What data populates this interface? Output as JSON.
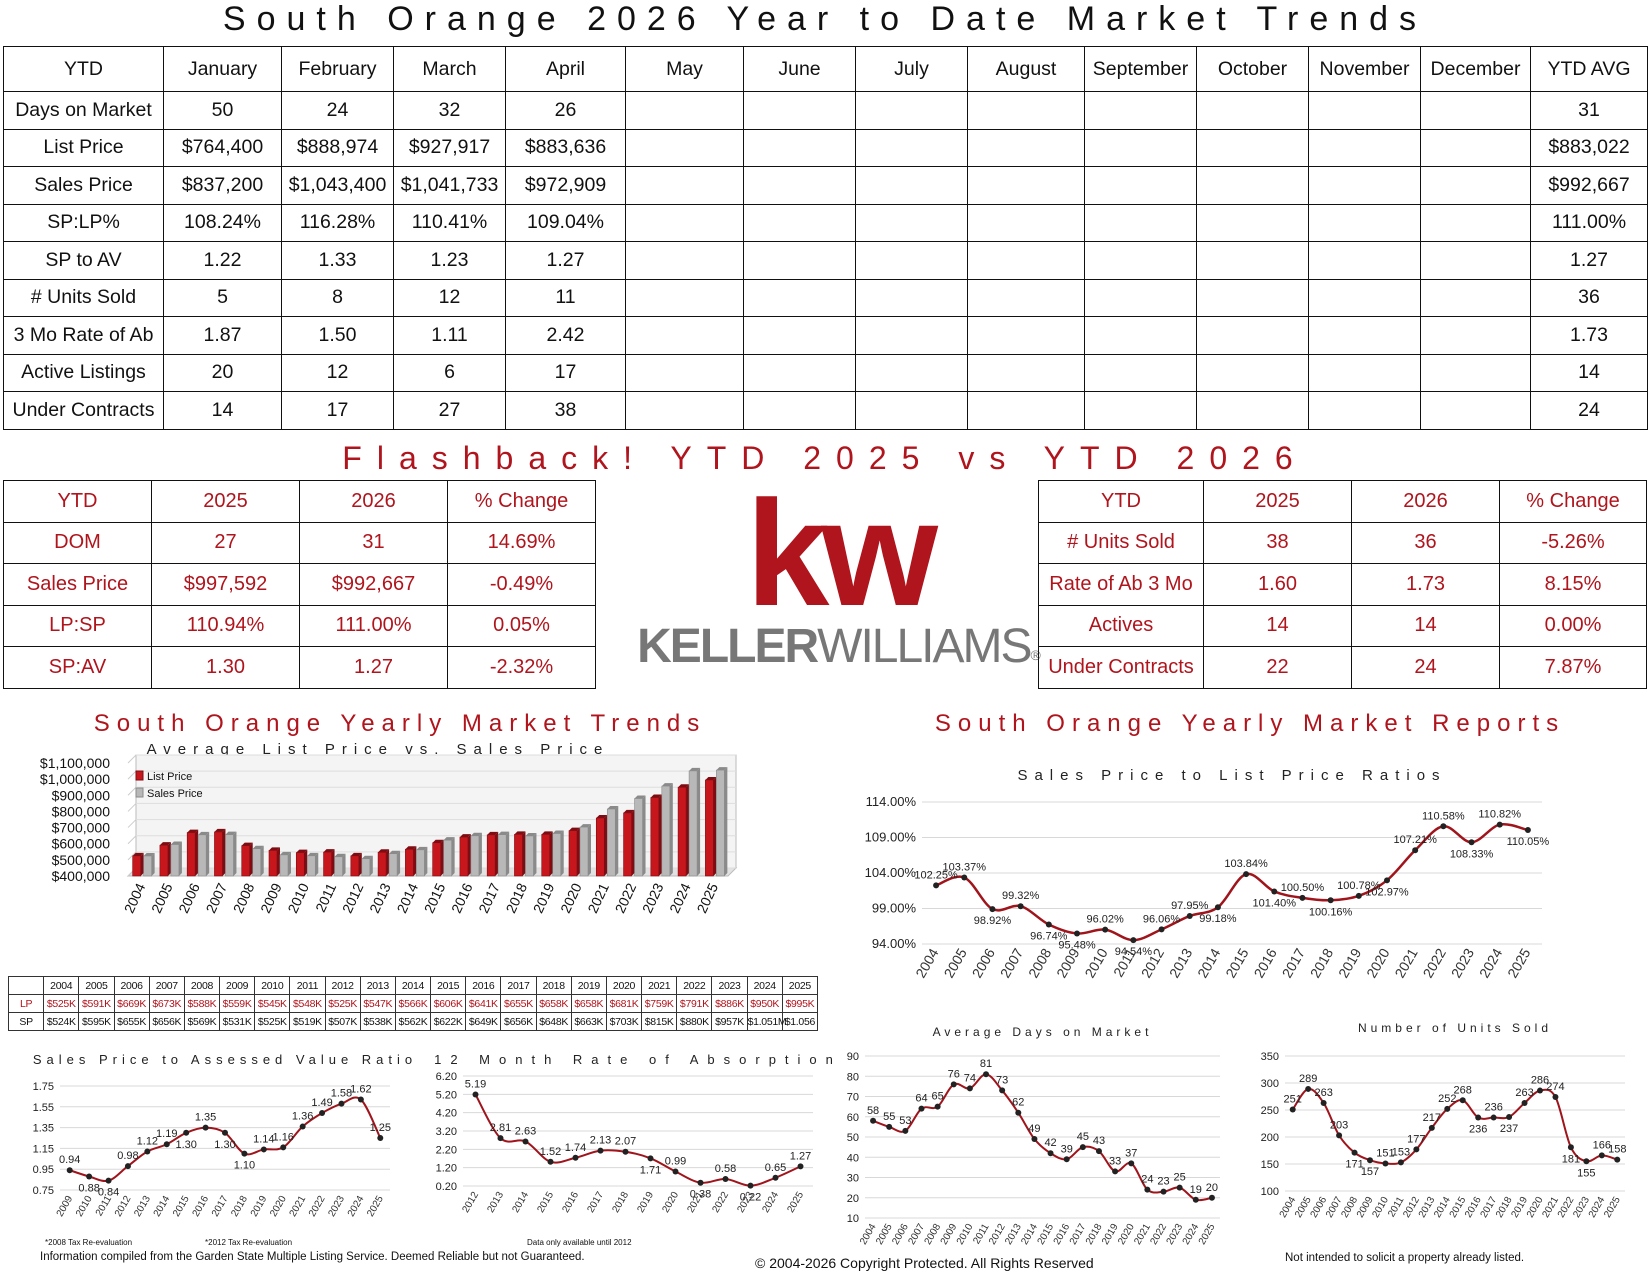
{
  "title": "South Orange 2026 Year to Date Market Trends",
  "main_table": {
    "columns": [
      "YTD",
      "January",
      "February",
      "March",
      "April",
      "May",
      "June",
      "July",
      "August",
      "September",
      "October",
      "November",
      "December",
      "YTD AVG"
    ],
    "rows": [
      {
        "label": "Days on Market",
        "values": [
          "50",
          "24",
          "32",
          "26",
          "",
          "",
          "",
          "",
          "",
          "",
          "",
          ""
        ],
        "avg": "31"
      },
      {
        "label": "List Price",
        "values": [
          "$764,400",
          "$888,974",
          "$927,917",
          "$883,636",
          "",
          "",
          "",
          "",
          "",
          "",
          "",
          ""
        ],
        "avg": "$883,022"
      },
      {
        "label": "Sales Price",
        "values": [
          "$837,200",
          "$1,043,400",
          "$1,041,733",
          "$972,909",
          "",
          "",
          "",
          "",
          "",
          "",
          "",
          ""
        ],
        "avg": "$992,667"
      },
      {
        "label": "SP:LP%",
        "values": [
          "108.24%",
          "116.28%",
          "110.41%",
          "109.04%",
          "",
          "",
          "",
          "",
          "",
          "",
          "",
          ""
        ],
        "avg": "111.00%"
      },
      {
        "label": "SP to AV",
        "values": [
          "1.22",
          "1.33",
          "1.23",
          "1.27",
          "",
          "",
          "",
          "",
          "",
          "",
          "",
          ""
        ],
        "avg": "1.27"
      },
      {
        "label": "# Units Sold",
        "values": [
          "5",
          "8",
          "12",
          "11",
          "",
          "",
          "",
          "",
          "",
          "",
          "",
          ""
        ],
        "avg": "36"
      },
      {
        "label": "3 Mo Rate of Ab",
        "values": [
          "1.87",
          "1.50",
          "1.11",
          "2.42",
          "",
          "",
          "",
          "",
          "",
          "",
          "",
          ""
        ],
        "avg": "1.73"
      },
      {
        "label": "Active Listings",
        "values": [
          "20",
          "12",
          "6",
          "17",
          "",
          "",
          "",
          "",
          "",
          "",
          "",
          ""
        ],
        "avg": "14"
      },
      {
        "label": "Under Contracts",
        "values": [
          "14",
          "17",
          "27",
          "38",
          "",
          "",
          "",
          "",
          "",
          "",
          "",
          ""
        ],
        "avg": "24"
      }
    ]
  },
  "flashback": {
    "title": "Flashback!  YTD 2025 vs YTD 2026",
    "columns": [
      "YTD",
      "2025",
      "2026",
      "% Change"
    ],
    "left_rows": [
      [
        "DOM",
        "27",
        "31",
        "14.69%"
      ],
      [
        "Sales Price",
        "$997,592",
        "$992,667",
        "-0.49%"
      ],
      [
        "LP:SP",
        "110.94%",
        "111.00%",
        "0.05%"
      ],
      [
        "SP:AV",
        "1.30",
        "1.27",
        "-2.32%"
      ]
    ],
    "right_rows": [
      [
        "# Units Sold",
        "38",
        "36",
        "-5.26%"
      ],
      [
        "Rate of Ab 3 Mo",
        "1.60",
        "1.73",
        "8.15%"
      ],
      [
        "Actives",
        "14",
        "14",
        "0.00%"
      ],
      [
        "Under Contracts",
        "22",
        "24",
        "7.87%"
      ]
    ]
  },
  "logo": {
    "kw": "kw",
    "brand_left": "KELLER",
    "brand_right": "WILLIAMS",
    "mark": "®"
  },
  "colors": {
    "accent": "#b0141c",
    "list_bar": "#c8161d",
    "sales_bar": "#b8b8b8",
    "line": "#a0141c"
  },
  "section_titles": {
    "trends": "South Orange Yearly Market Trends",
    "reports": "South Orange Yearly Market Reports"
  },
  "mini_table": {
    "years": [
      "2004",
      "2005",
      "2006",
      "2007",
      "2008",
      "2009",
      "2010",
      "2011",
      "2012",
      "2013",
      "2014",
      "2015",
      "2016",
      "2017",
      "2018",
      "2019",
      "2020",
      "2021",
      "2022",
      "2023",
      "2024",
      "2025"
    ],
    "lp_label": "LP",
    "sp_label": "SP",
    "lp": [
      "$525K",
      "$591K",
      "$669K",
      "$673K",
      "$588K",
      "$559K",
      "$545K",
      "$548K",
      "$525K",
      "$547K",
      "$566K",
      "$606K",
      "$641K",
      "$655K",
      "$658K",
      "$658K",
      "$681K",
      "$759K",
      "$791K",
      "$886K",
      "$950K",
      "$995K"
    ],
    "sp": [
      "$524K",
      "$595K",
      "$655K",
      "$656K",
      "$569K",
      "$531K",
      "$525K",
      "$519K",
      "$507K",
      "$538K",
      "$562K",
      "$622K",
      "$649K",
      "$656K",
      "$648K",
      "$663K",
      "$703K",
      "$815K",
      "$880K",
      "$957K",
      "$1.051M",
      "$1.056"
    ]
  },
  "footer": {
    "left": "Information compiled from the Garden State Multiple Listing Service.  Deemed Reliable but not Guaranteed.",
    "center": "© 2004-2026 Copyright Protected.  All Rights Reserved",
    "right": "Not intended to solicit a property already listed.",
    "note_2008": "*2008 Tax Re-evaluation",
    "note_2012": "*2012 Tax Re-evaluation",
    "note_data": "Data only available until 2012"
  },
  "chart_data": [
    {
      "id": "list-vs-sales",
      "type": "bar",
      "title": "Average List Price vs. Sales Price",
      "categories": [
        "2004",
        "2005",
        "2006",
        "2007",
        "2008",
        "2009",
        "2010",
        "2011",
        "2012",
        "2013",
        "2014",
        "2015",
        "2016",
        "2017",
        "2018",
        "2019",
        "2020",
        "2021",
        "2022",
        "2023",
        "2024",
        "2025"
      ],
      "series": [
        {
          "name": "List Price",
          "values": [
            525000,
            591000,
            669000,
            673000,
            588000,
            559000,
            545000,
            548000,
            525000,
            547000,
            566000,
            606000,
            641000,
            655000,
            658000,
            658000,
            681000,
            759000,
            791000,
            886000,
            950000,
            995000
          ]
        },
        {
          "name": "Sales Price",
          "values": [
            524000,
            595000,
            655000,
            656000,
            569000,
            531000,
            525000,
            519000,
            507000,
            538000,
            562000,
            622000,
            649000,
            656000,
            648000,
            663000,
            703000,
            815000,
            880000,
            957000,
            1051000,
            1056000
          ]
        }
      ],
      "ylim": [
        400000,
        1100000
      ],
      "yticks": [
        "$400,000",
        "$500,000",
        "$600,000",
        "$700,000",
        "$800,000",
        "$900,000",
        "$1,000,000",
        "$1,100,000"
      ],
      "legend": "top-left"
    },
    {
      "id": "sp-lp-ratio",
      "type": "line",
      "title": "Sales Price to List Price Ratios",
      "categories": [
        "2004",
        "2005",
        "2006",
        "2007",
        "2008",
        "2009",
        "2010",
        "2011",
        "2012",
        "2013",
        "2014",
        "2015",
        "2016",
        "2017",
        "2018",
        "2019",
        "2020",
        "2021",
        "2022",
        "2023",
        "2024",
        "2025"
      ],
      "values": [
        102.25,
        103.37,
        98.92,
        99.32,
        96.74,
        95.48,
        96.02,
        94.54,
        96.06,
        97.95,
        99.18,
        103.84,
        101.4,
        100.5,
        100.16,
        100.78,
        102.97,
        107.21,
        110.58,
        108.33,
        110.82,
        110.05
      ],
      "labels": [
        "102.25%",
        "103.37%",
        "98.92%",
        "99.32%",
        "96.74%",
        "95.48%",
        "96.02%",
        "94.54%",
        "96.06%",
        "97.95%",
        "99.18%",
        "103.84%",
        "101.40%",
        "100.50%",
        "100.16%",
        "100.78%",
        "102.97%",
        "107.21%",
        "110.58%",
        "108.33%",
        "110.82%",
        "110.05%"
      ],
      "ylim": [
        94,
        114
      ],
      "yticks": [
        "94.00%",
        "99.00%",
        "104.00%",
        "109.00%",
        "114.00%"
      ]
    },
    {
      "id": "sp-av-ratio",
      "type": "line",
      "title": "Sales Price to Assessed Value Ratio",
      "categories": [
        "2009",
        "2010",
        "2011",
        "2012",
        "2013",
        "2014",
        "2015",
        "2016",
        "2017",
        "2018",
        "2019",
        "2020",
        "2021",
        "2022",
        "2023",
        "2024",
        "2025"
      ],
      "values": [
        0.94,
        0.88,
        0.84,
        0.98,
        1.12,
        1.19,
        1.3,
        1.35,
        1.3,
        1.1,
        1.14,
        1.16,
        1.36,
        1.49,
        1.58,
        1.62,
        1.25
      ],
      "labels": [
        "0.94",
        "0.88",
        "0.84",
        "0.98",
        "1.12",
        "1.19",
        "1.30",
        "1.35",
        "1.30",
        "1.10",
        "1.14",
        "1.16",
        "1.36",
        "1.49",
        "1.58",
        "1.62",
        "1.25"
      ],
      "ylim": [
        0.75,
        1.75
      ],
      "yticks": [
        "0.75",
        "0.95",
        "1.15",
        "1.35",
        "1.55",
        "1.75"
      ]
    },
    {
      "id": "absorption",
      "type": "line",
      "title": "12 Month Rate of Absorption",
      "categories": [
        "2012",
        "2013",
        "2014",
        "2015",
        "2016",
        "2017",
        "2018",
        "2019",
        "2020",
        "2021",
        "2022",
        "2023",
        "2024",
        "2025"
      ],
      "values": [
        5.19,
        2.81,
        2.63,
        1.52,
        1.74,
        2.13,
        2.07,
        1.71,
        0.99,
        0.38,
        0.58,
        0.22,
        0.65,
        1.27
      ],
      "labels": [
        "5.19",
        "2.81",
        "2.63",
        "1.52",
        "1.74",
        "2.13",
        "2.07",
        "1.71",
        "0.99",
        "0.38",
        "0.58",
        "0.22",
        "0.65",
        "1.27"
      ],
      "ylim": [
        0.2,
        6.2
      ],
      "yticks": [
        "0.20",
        "1.20",
        "2.20",
        "3.20",
        "4.20",
        "5.20",
        "6.20"
      ]
    },
    {
      "id": "days-on-market",
      "type": "line",
      "title": "Average Days on Market",
      "categories": [
        "2004",
        "2005",
        "2006",
        "2007",
        "2008",
        "2009",
        "2010",
        "2011",
        "2012",
        "2013",
        "2014",
        "2015",
        "2016",
        "2017",
        "2018",
        "2019",
        "2020",
        "2021",
        "2022",
        "2023",
        "2024",
        "2025"
      ],
      "values": [
        58,
        55,
        53,
        64,
        65,
        76,
        74,
        81,
        73,
        62,
        49,
        42,
        39,
        45,
        43,
        33,
        37,
        24,
        23,
        25,
        19,
        20
      ],
      "labels": [
        "58",
        "55",
        "53",
        "64",
        "65",
        "76",
        "74",
        "81",
        "73",
        "62",
        "49",
        "42",
        "39",
        "45",
        "43",
        "33",
        "37",
        "24",
        "23",
        "25",
        "19",
        "20"
      ],
      "ylim": [
        10,
        90
      ],
      "yticks": [
        "10",
        "20",
        "30",
        "40",
        "50",
        "60",
        "70",
        "80",
        "90"
      ]
    },
    {
      "id": "units-sold",
      "type": "line",
      "title": "Number of Units Sold",
      "categories": [
        "2004",
        "2005",
        "2006",
        "2007",
        "2008",
        "2009",
        "2010",
        "2011",
        "2012",
        "2013",
        "2014",
        "2015",
        "2016",
        "2017",
        "2018",
        "2019",
        "2020",
        "2021",
        "2022",
        "2023",
        "2024",
        "2025"
      ],
      "values": [
        251,
        289,
        263,
        203,
        171,
        157,
        151,
        153,
        177,
        217,
        252,
        268,
        236,
        236,
        237,
        263,
        286,
        274,
        181,
        155,
        166,
        158
      ],
      "labels": [
        "251",
        "289",
        "263",
        "203",
        "171",
        "157",
        "151",
        "153",
        "177",
        "217",
        "252",
        "268",
        "236",
        "236",
        "237",
        "263",
        "286",
        "274",
        "181",
        "155",
        "166",
        "158"
      ],
      "ylim": [
        100,
        350
      ],
      "yticks": [
        "100",
        "150",
        "200",
        "250",
        "300",
        "350"
      ]
    }
  ]
}
